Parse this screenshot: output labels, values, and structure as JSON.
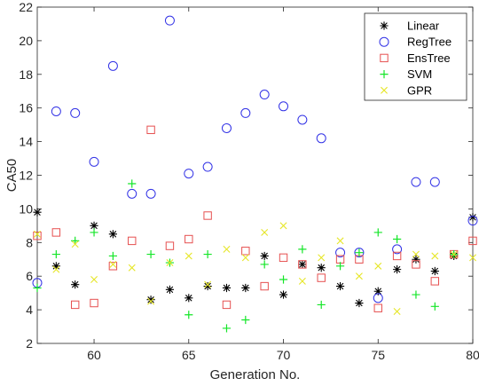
{
  "chart_data": {
    "type": "scatter",
    "title": "",
    "xlabel": "Generation No.",
    "ylabel": "CA50",
    "xlim": [
      57,
      80
    ],
    "ylim": [
      2,
      22
    ],
    "xticks": [
      60,
      65,
      70,
      75,
      80
    ],
    "yticks": [
      2,
      4,
      6,
      8,
      10,
      12,
      14,
      16,
      18,
      20,
      22
    ],
    "grid": false,
    "legend_position": "top-right",
    "series": [
      {
        "name": "Linear",
        "marker": "asterisk",
        "color": "#000000",
        "points": [
          [
            57,
            9.8
          ],
          [
            58,
            6.6
          ],
          [
            59,
            5.5
          ],
          [
            60,
            9.0
          ],
          [
            61,
            8.5
          ],
          [
            63,
            4.6
          ],
          [
            64,
            5.2
          ],
          [
            65,
            4.7
          ],
          [
            66,
            5.4
          ],
          [
            67,
            5.3
          ],
          [
            68,
            5.3
          ],
          [
            69,
            7.2
          ],
          [
            70,
            4.9
          ],
          [
            71,
            6.7
          ],
          [
            72,
            6.5
          ],
          [
            73,
            5.4
          ],
          [
            74,
            4.4
          ],
          [
            75,
            5.1
          ],
          [
            76,
            6.4
          ],
          [
            77,
            7.0
          ],
          [
            78,
            6.3
          ],
          [
            79,
            7.2
          ],
          [
            80,
            9.5
          ]
        ]
      },
      {
        "name": "RegTree",
        "marker": "circle",
        "color": "#3232e6",
        "points": [
          [
            57,
            5.6
          ],
          [
            58,
            15.8
          ],
          [
            59,
            15.7
          ],
          [
            60,
            12.8
          ],
          [
            61,
            18.5
          ],
          [
            62,
            10.9
          ],
          [
            63,
            10.9
          ],
          [
            64,
            21.2
          ],
          [
            65,
            12.1
          ],
          [
            66,
            12.5
          ],
          [
            67,
            14.8
          ],
          [
            68,
            15.7
          ],
          [
            69,
            16.8
          ],
          [
            70,
            16.1
          ],
          [
            71,
            15.3
          ],
          [
            72,
            14.2
          ],
          [
            73,
            7.4
          ],
          [
            74,
            7.4
          ],
          [
            75,
            4.7
          ],
          [
            76,
            7.6
          ],
          [
            77,
            11.6
          ],
          [
            78,
            11.6
          ],
          [
            80,
            9.3
          ]
        ]
      },
      {
        "name": "EnsTree",
        "marker": "square",
        "color": "#e65050",
        "points": [
          [
            57,
            8.4
          ],
          [
            58,
            8.6
          ],
          [
            59,
            4.3
          ],
          [
            60,
            4.4
          ],
          [
            61,
            6.6
          ],
          [
            62,
            8.1
          ],
          [
            63,
            14.7
          ],
          [
            64,
            7.8
          ],
          [
            65,
            8.2
          ],
          [
            66,
            9.6
          ],
          [
            67,
            4.3
          ],
          [
            68,
            7.5
          ],
          [
            69,
            5.4
          ],
          [
            70,
            7.1
          ],
          [
            71,
            6.7
          ],
          [
            72,
            5.9
          ],
          [
            73,
            7.0
          ],
          [
            74,
            7.0
          ],
          [
            75,
            4.1
          ],
          [
            76,
            7.2
          ],
          [
            77,
            6.7
          ],
          [
            78,
            5.7
          ],
          [
            79,
            7.3
          ],
          [
            80,
            8.1
          ]
        ]
      },
      {
        "name": "SVM",
        "marker": "plus",
        "color": "#14e628",
        "points": [
          [
            57,
            5.3
          ],
          [
            58,
            7.3
          ],
          [
            59,
            8.1
          ],
          [
            60,
            8.6
          ],
          [
            61,
            7.2
          ],
          [
            62,
            11.5
          ],
          [
            63,
            7.3
          ],
          [
            64,
            6.8
          ],
          [
            65,
            3.7
          ],
          [
            66,
            7.3
          ],
          [
            67,
            2.9
          ],
          [
            68,
            3.4
          ],
          [
            69,
            6.7
          ],
          [
            70,
            5.8
          ],
          [
            71,
            7.6
          ],
          [
            72,
            4.3
          ],
          [
            73,
            6.6
          ],
          [
            74,
            7.4
          ],
          [
            75,
            8.6
          ],
          [
            76,
            8.2
          ],
          [
            77,
            4.9
          ],
          [
            78,
            4.2
          ],
          [
            79,
            7.3
          ]
        ]
      },
      {
        "name": "GPR",
        "marker": "x",
        "color": "#e6e628",
        "points": [
          [
            57,
            8.5
          ],
          [
            58,
            6.4
          ],
          [
            59,
            7.9
          ],
          [
            60,
            5.8
          ],
          [
            61,
            6.7
          ],
          [
            62,
            6.5
          ],
          [
            63,
            4.5
          ],
          [
            64,
            6.8
          ],
          [
            65,
            7.2
          ],
          [
            66,
            5.5
          ],
          [
            67,
            7.6
          ],
          [
            68,
            7.1
          ],
          [
            69,
            8.6
          ],
          [
            70,
            9.0
          ],
          [
            71,
            5.7
          ],
          [
            72,
            7.1
          ],
          [
            73,
            8.1
          ],
          [
            74,
            6.0
          ],
          [
            75,
            6.6
          ],
          [
            76,
            3.9
          ],
          [
            77,
            7.3
          ],
          [
            78,
            7.2
          ],
          [
            79,
            7.3
          ],
          [
            80,
            7.1
          ]
        ]
      }
    ]
  }
}
